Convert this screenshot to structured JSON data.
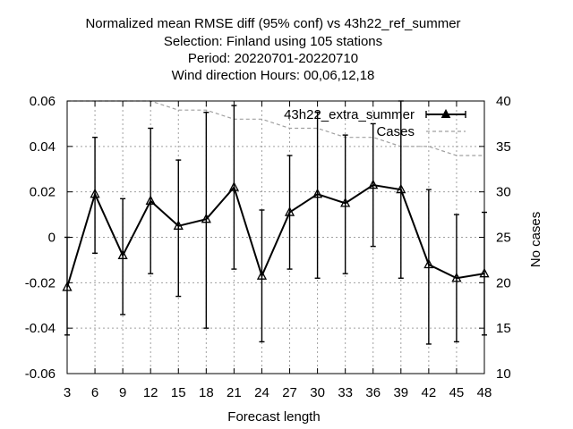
{
  "chart_data": {
    "type": "line",
    "title": [
      "Normalized mean RMSE diff (95% conf) vs 43h22_ref_summer",
      "Selection: Finland using   105 stations",
      "Period: 20220701-20220710",
      "Wind direction   Hours:  00,06,12,18"
    ],
    "xlabel": "Forecast length",
    "ylabel": "",
    "y2label": "No cases",
    "x": [
      3,
      6,
      9,
      12,
      15,
      18,
      21,
      24,
      27,
      30,
      33,
      36,
      39,
      42,
      45,
      48
    ],
    "xlim": [
      3,
      48
    ],
    "ylim": [
      -0.06,
      0.06
    ],
    "y2lim": [
      10,
      40
    ],
    "yticks": [
      "-0.06",
      "-0.04",
      "-0.02",
      "0",
      "0.02",
      "0.04",
      "0.06"
    ],
    "yticks_values": [
      -0.06,
      -0.04,
      -0.02,
      0,
      0.02,
      0.04,
      0.06
    ],
    "y2ticks": [
      "10",
      "15",
      "20",
      "25",
      "30",
      "35",
      "40"
    ],
    "y2ticks_values": [
      10,
      15,
      20,
      25,
      30,
      35,
      40
    ],
    "xticks": [
      "3",
      "6",
      "9",
      "12",
      "15",
      "18",
      "21",
      "24",
      "27",
      "30",
      "33",
      "36",
      "39",
      "42",
      "45",
      "48"
    ],
    "grid": true,
    "legend_position": "top-right",
    "series": [
      {
        "name": "43h22_extra_summer",
        "axis": "left",
        "color": "#000000",
        "values": [
          -0.022,
          0.019,
          -0.008,
          0.016,
          0.005,
          0.008,
          0.022,
          -0.017,
          0.011,
          0.019,
          0.015,
          0.023,
          0.021,
          -0.012,
          -0.018,
          -0.016
        ],
        "err_low": [
          -0.043,
          -0.007,
          -0.034,
          -0.016,
          -0.026,
          -0.04,
          -0.014,
          -0.046,
          -0.014,
          -0.018,
          -0.016,
          -0.004,
          -0.018,
          -0.047,
          -0.046,
          -0.043
        ],
        "err_high": [
          0.0,
          0.044,
          0.017,
          0.048,
          0.034,
          0.055,
          0.058,
          0.012,
          0.036,
          0.055,
          0.045,
          0.05,
          0.06,
          0.021,
          0.01,
          0.011
        ]
      },
      {
        "name": "Cases",
        "axis": "right",
        "color": "#a0a0a0",
        "values": [
          40,
          40,
          40,
          40,
          39,
          39,
          38,
          38,
          37,
          37,
          36,
          36,
          35,
          35,
          34,
          34
        ]
      }
    ]
  }
}
